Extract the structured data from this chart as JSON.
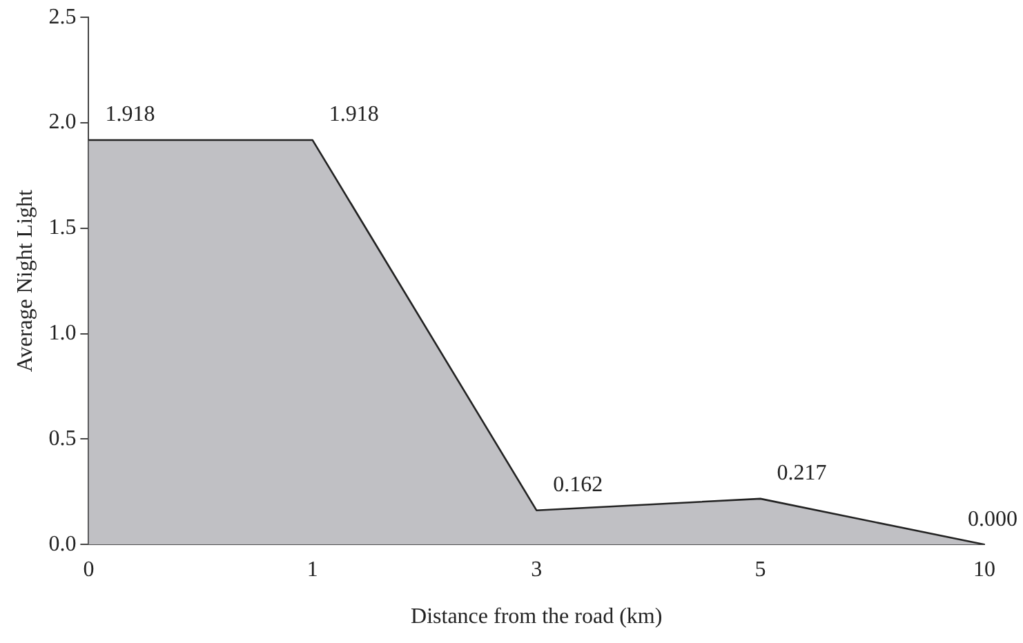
{
  "chart_data": {
    "type": "area",
    "xlabel": "Distance from the road (km)",
    "ylabel": "Average Night Light",
    "categories": [
      "0",
      "1",
      "3",
      "5",
      "10"
    ],
    "series": [
      {
        "color": "#c0c0c4",
        "values": [
          1.918,
          1.918,
          0.162,
          0.217,
          0
        ],
        "value_labels": [
          "1.918",
          "1.918",
          "0.162",
          "0.217",
          "0.000"
        ]
      }
    ],
    "ylim": [
      0,
      2.5
    ],
    "yticks": [
      {
        "value": 0,
        "label": "0.0"
      },
      {
        "value": 0.5,
        "label": "0.5"
      },
      {
        "value": 1,
        "label": "1.0"
      },
      {
        "value": 1.5,
        "label": "1.5"
      },
      {
        "value": 2,
        "label": "2.0"
      },
      {
        "value": 2.5,
        "label": "2.5"
      }
    ],
    "grid": false,
    "legend": false
  }
}
